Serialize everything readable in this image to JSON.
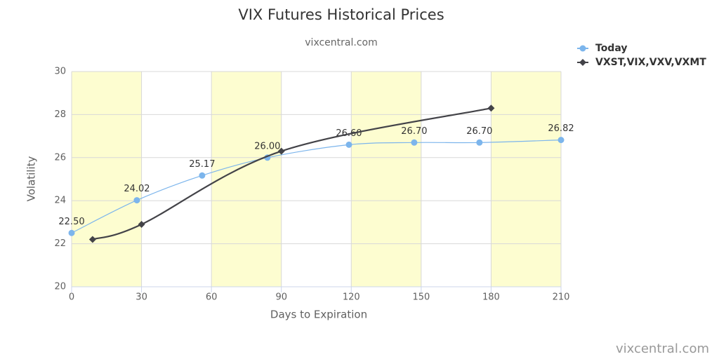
{
  "chart_data": {
    "type": "line",
    "title": "VIX Futures Historical Prices",
    "subtitle": "vixcentral.com",
    "credits": "vixcentral.com",
    "x_label": "Days to Expiration",
    "y_label": "Volatility",
    "xlim": [
      0,
      210
    ],
    "xticks": [
      0,
      30,
      60,
      90,
      120,
      150,
      180,
      210
    ],
    "ylim": [
      20,
      30
    ],
    "yticks": [
      20,
      22,
      24,
      26,
      28,
      30
    ],
    "grid": true,
    "alternate_bands": "#fdfdd0",
    "legend": "top-right",
    "series": [
      {
        "name": "Today",
        "color": "#7cb5ec",
        "marker": "circle",
        "smooth": true,
        "x": [
          0,
          28,
          56,
          84,
          119,
          147,
          175,
          210
        ],
        "values": [
          22.5,
          24.02,
          25.17,
          26,
          26.6,
          26.7,
          26.7,
          26.82
        ],
        "value_labels": [
          "22.50",
          "24.02",
          "25.17",
          "26.00",
          "26.60",
          "26.70",
          "26.70",
          "26.82"
        ]
      },
      {
        "name": "VXST,VIX,VXV,VXMT",
        "color": "#434348",
        "marker": "diamond",
        "smooth": true,
        "x": [
          9,
          30,
          90,
          180
        ],
        "values": [
          22.2,
          22.9,
          26.3,
          28.3
        ]
      }
    ]
  }
}
